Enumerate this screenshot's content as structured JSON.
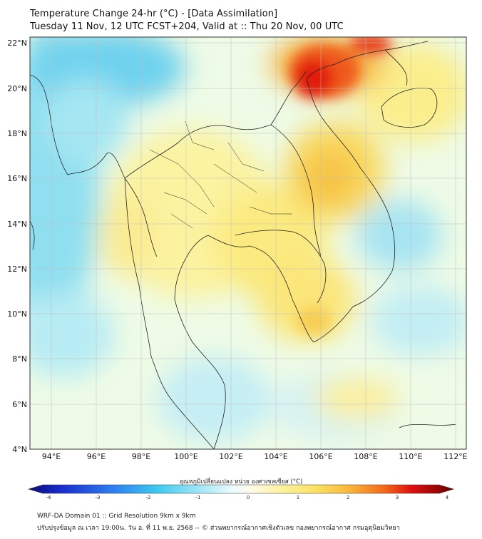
{
  "header": {
    "title": "Temperature Change 24-hr (°C) - [Data Assimilation]",
    "subtitle": "Tuesday 11 Nov, 12 UTC FCST+204, Valid at :: Thu 20 Nov, 00 UTC"
  },
  "map": {
    "lat_labels": [
      "22°N",
      "20°N",
      "18°N",
      "16°N",
      "14°N",
      "12°N",
      "10°N",
      "8°N",
      "6°N",
      "4°N"
    ],
    "lon_labels": [
      "94°E",
      "96°E",
      "98°E",
      "100°E",
      "102°E",
      "104°E",
      "106°E",
      "108°E",
      "110°E",
      "112°E"
    ],
    "lat_range": [
      4,
      22.2
    ],
    "lon_range": [
      93.1,
      112.5
    ],
    "regions": [
      {
        "name": "hot-spot-north-vietnam",
        "lat": 20.8,
        "lon": 105.8,
        "value": 3.2
      },
      {
        "name": "warm-laos-east",
        "lat": 15.5,
        "lon": 106.0,
        "value": 2.2
      },
      {
        "name": "warm-hainan-sea",
        "lat": 18.5,
        "lon": 110.0,
        "value": 1.5
      },
      {
        "name": "warm-central-thailand",
        "lat": 13.5,
        "lon": 101.0,
        "value": 1.2
      },
      {
        "name": "warm-cambodia",
        "lat": 11.5,
        "lon": 104.5,
        "value": 1.6
      },
      {
        "name": "warm-south-vietnam",
        "lat": 10.3,
        "lon": 106.0,
        "value": 1.3
      },
      {
        "name": "cool-myanmar-north",
        "lat": 20.8,
        "lon": 95.5,
        "value": -1.4
      },
      {
        "name": "cool-bay-of-bengal",
        "lat": 15.0,
        "lon": 93.5,
        "value": -1.3
      },
      {
        "name": "cool-andaman-sea",
        "lat": 9.0,
        "lon": 94.5,
        "value": -1.0
      },
      {
        "name": "cool-south-china-sea",
        "lat": 14.0,
        "lon": 109.5,
        "value": -1.0
      },
      {
        "name": "cool-gulf-south",
        "lat": 7.0,
        "lon": 103.5,
        "value": -0.6
      },
      {
        "name": "cool-malay-coast",
        "lat": 5.5,
        "lon": 101.0,
        "value": -0.8
      }
    ]
  },
  "colorbar": {
    "label": "อุณหภูมิเปลี่ยนแปลง หน่วย องศาเซลเซียส (°C)",
    "ticks": [
      "-4",
      "-3",
      "-2",
      "-1",
      "0",
      "1",
      "2",
      "3",
      "4"
    ],
    "min": -4,
    "max": 4
  },
  "footer": {
    "line1": "WRF-DA Domain 01 :: Grid Resolution 9km x 9km",
    "line2": "ปรับปรุงข้อมูล ณ เวลา 19:00น. วัน อ. ที่ 11 พ.ย. 2568 -- © ส่วนพยากรณ์อากาศเชิงตัวเลข กองพยากรณ์อากาศ กรมอุตุนิยมวิทยา"
  }
}
